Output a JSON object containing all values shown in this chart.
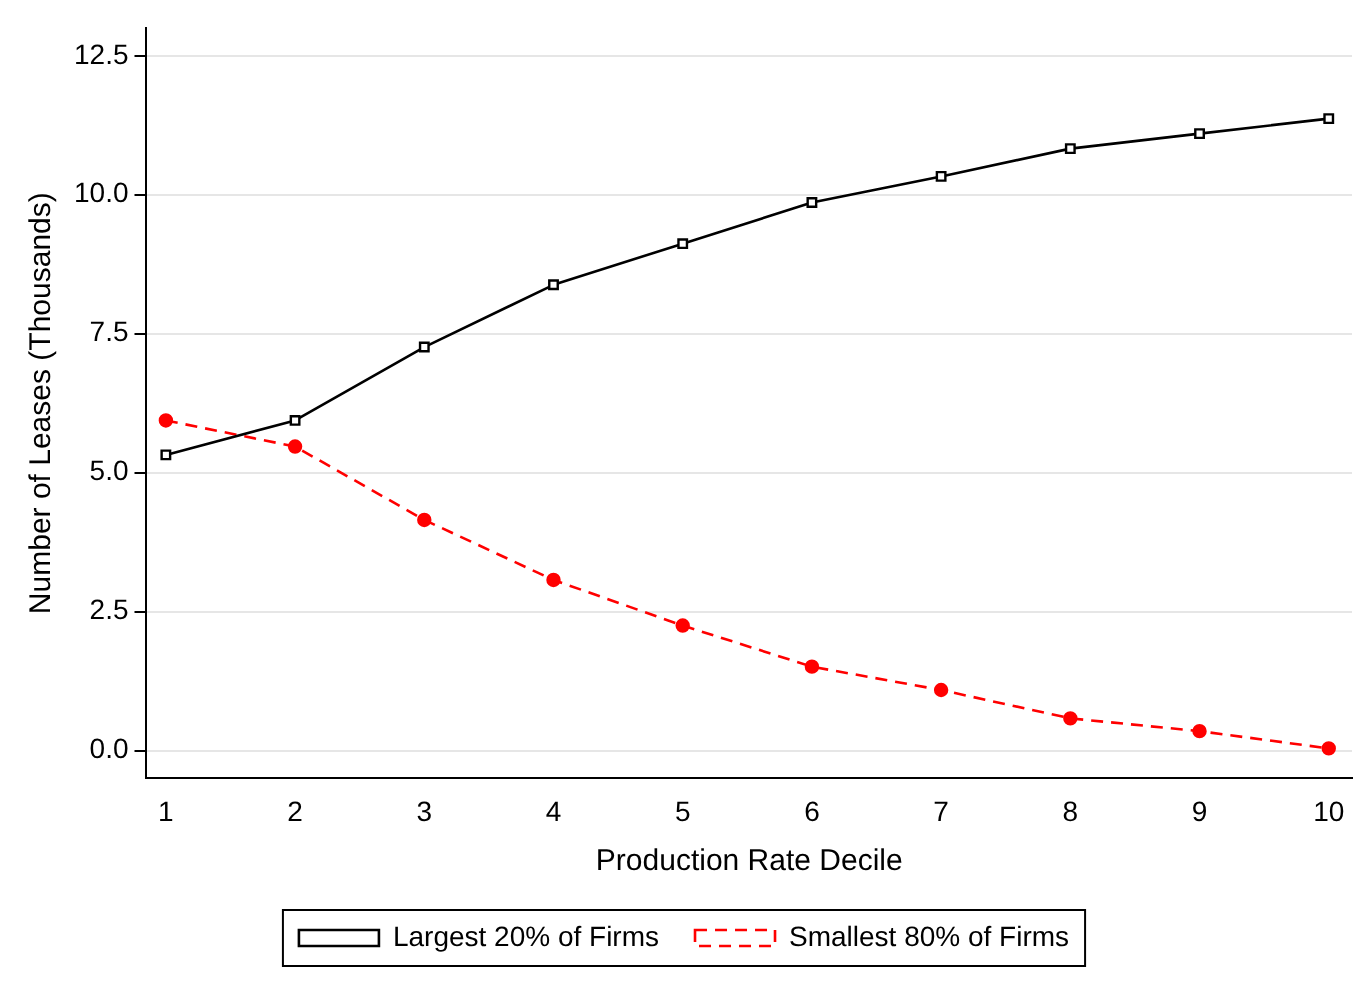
{
  "chart_data": {
    "type": "line",
    "xlabel": "Production Rate Decile",
    "ylabel": "Number of Leases (Thousands)",
    "x": [
      1,
      2,
      3,
      4,
      5,
      6,
      7,
      8,
      9,
      10
    ],
    "series": [
      {
        "name": "Largest 20% of Firms",
        "color": "#000000",
        "marker": "square",
        "line_style": "solid",
        "values": [
          5.32,
          5.94,
          7.26,
          8.38,
          9.12,
          9.86,
          10.33,
          10.83,
          11.1,
          11.37
        ]
      },
      {
        "name": "Smallest 80% of Firms",
        "color": "#ff0000",
        "marker": "circle",
        "line_style": "dashed",
        "values": [
          5.94,
          5.47,
          4.15,
          3.07,
          2.25,
          1.51,
          1.09,
          0.58,
          0.35,
          0.04
        ]
      }
    ],
    "xlim": [
      0.85,
      10.18
    ],
    "xticks": [
      1,
      2,
      3,
      4,
      5,
      6,
      7,
      8,
      9,
      10
    ],
    "ylim": [
      -0.5,
      13
    ],
    "yticks": [
      {
        "value": 0,
        "label": "0.0"
      },
      {
        "value": 2.5,
        "label": "2.5"
      },
      {
        "value": 5,
        "label": "5.0"
      },
      {
        "value": 7.5,
        "label": "7.5"
      },
      {
        "value": 10,
        "label": "10.0"
      },
      {
        "value": 12.5,
        "label": "12.5"
      }
    ],
    "grid": "y",
    "legend": "bottom"
  }
}
